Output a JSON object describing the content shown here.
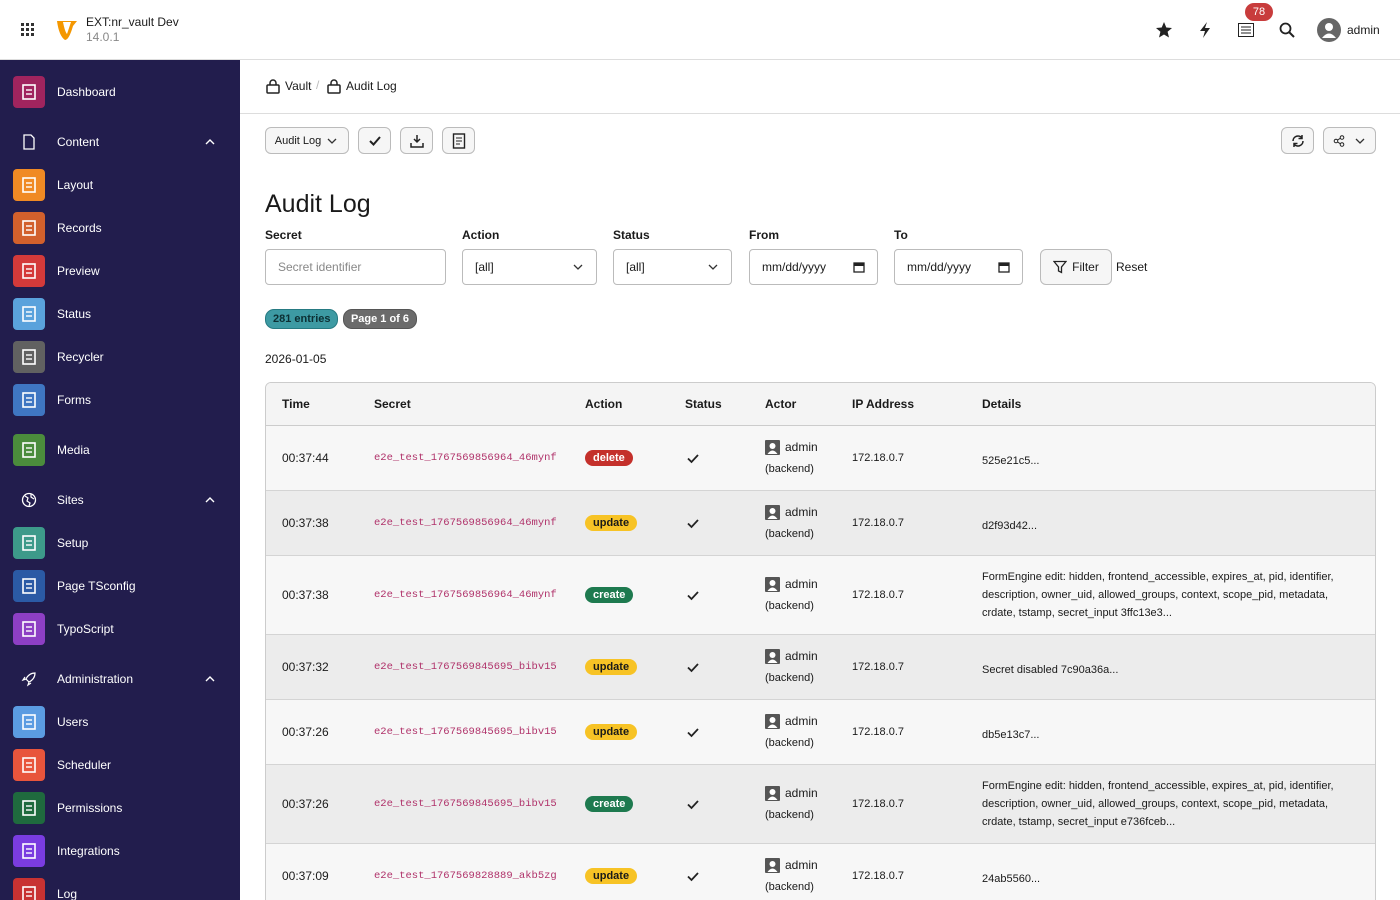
{
  "header": {
    "site_name": "EXT:nr_vault Dev",
    "version": "14.0.1",
    "notifications": "78",
    "user": "admin"
  },
  "sidebar": [
    {
      "label": "Dashboard"
    },
    {
      "label": "Content",
      "items": [
        "Layout",
        "Records",
        "Preview",
        "Status",
        "Recycler",
        "Forms"
      ]
    },
    {
      "label": "Media"
    },
    {
      "label": "Sites",
      "items": [
        "Setup",
        "Page TSconfig",
        "TypoScript"
      ]
    },
    {
      "label": "Administration",
      "items": [
        "Users",
        "Scheduler",
        "Permissions",
        "Integrations",
        "Log"
      ]
    }
  ],
  "breadcrumb": [
    "Vault",
    "Audit Log"
  ],
  "toolbar": {
    "module_menu": "Audit Log"
  },
  "page": {
    "title": "Audit Log",
    "filters": {
      "secret": {
        "label": "Secret",
        "placeholder": "Secret identifier"
      },
      "action": {
        "label": "Action",
        "value": "[all]"
      },
      "status": {
        "label": "Status",
        "value": "[all]"
      },
      "from": {
        "label": "From",
        "placeholder": "mm/dd/yyyy"
      },
      "to": {
        "label": "To",
        "placeholder": "mm/dd/yyyy"
      },
      "filter_button": "Filter",
      "reset_button": "Reset"
    },
    "badges": {
      "entries": "281 entries",
      "page": "Page 1 of 6"
    },
    "date": "2026-01-05"
  },
  "table": {
    "headers": [
      "Time",
      "Secret",
      "Action",
      "Status",
      "Actor",
      "IP Address",
      "Details"
    ],
    "rows": [
      {
        "time": "00:37:44",
        "secret": "e2e_test_1767569856964_46mynf",
        "action": "delete",
        "actor": "admin",
        "actor_type": "(backend)",
        "ip": "172.18.0.7",
        "details": "525e21c5..."
      },
      {
        "time": "00:37:38",
        "secret": "e2e_test_1767569856964_46mynf",
        "action": "update",
        "actor": "admin",
        "actor_type": "(backend)",
        "ip": "172.18.0.7",
        "details": "d2f93d42..."
      },
      {
        "time": "00:37:38",
        "secret": "e2e_test_1767569856964_46mynf",
        "action": "create",
        "actor": "admin",
        "actor_type": "(backend)",
        "ip": "172.18.0.7",
        "details": "FormEngine edit: hidden, frontend_accessible, expires_at, pid, identifier, description, owner_uid, allowed_groups, context, scope_pid, metadata, crdate, tstamp, secret_input 3ffc13e3..."
      },
      {
        "time": "00:37:32",
        "secret": "e2e_test_1767569845695_bibv15",
        "action": "update",
        "actor": "admin",
        "actor_type": "(backend)",
        "ip": "172.18.0.7",
        "details": "Secret disabled 7c90a36a..."
      },
      {
        "time": "00:37:26",
        "secret": "e2e_test_1767569845695_bibv15",
        "action": "update",
        "actor": "admin",
        "actor_type": "(backend)",
        "ip": "172.18.0.7",
        "details": "db5e13c7..."
      },
      {
        "time": "00:37:26",
        "secret": "e2e_test_1767569845695_bibv15",
        "action": "create",
        "actor": "admin",
        "actor_type": "(backend)",
        "ip": "172.18.0.7",
        "details": "FormEngine edit: hidden, frontend_accessible, expires_at, pid, identifier, description, owner_uid, allowed_groups, context, scope_pid, metadata, crdate, tstamp, secret_input e736fceb..."
      },
      {
        "time": "00:37:09",
        "secret": "e2e_test_1767569828889_akb5zg",
        "action": "update",
        "actor": "admin",
        "actor_type": "(backend)",
        "ip": "172.18.0.7",
        "details": "24ab5560..."
      }
    ]
  }
}
